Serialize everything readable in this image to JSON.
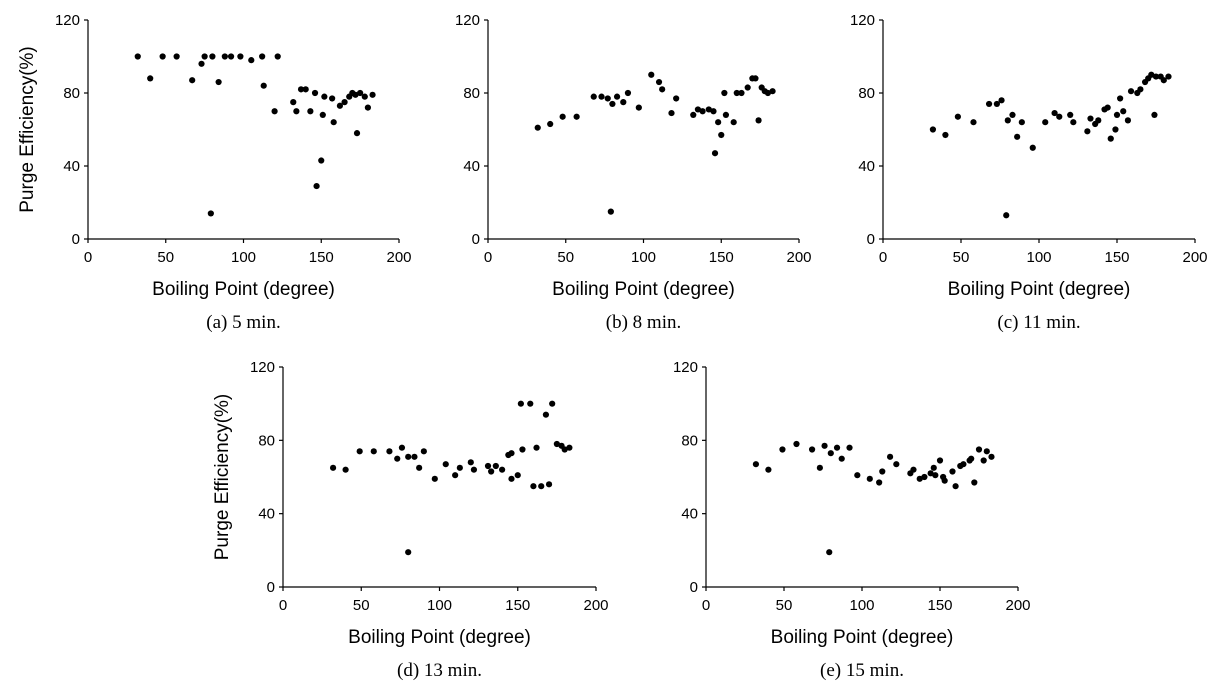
{
  "chart_data": [
    {
      "type": "scatter",
      "caption": "(a) 5 min.",
      "xlabel": "Boiling Point (degree)",
      "ylabel": "Purge Efficiency(%)",
      "xlim": [
        0,
        200
      ],
      "ylim": [
        0,
        120
      ],
      "xticks": [
        "0",
        "50",
        "100",
        "150",
        "200"
      ],
      "yticks": [
        "0",
        "40",
        "80",
        "120"
      ],
      "grid": false,
      "points": [
        [
          32,
          100
        ],
        [
          40,
          88
        ],
        [
          48,
          100
        ],
        [
          57,
          100
        ],
        [
          67,
          87
        ],
        [
          73,
          96
        ],
        [
          75,
          100
        ],
        [
          80,
          100
        ],
        [
          84,
          86
        ],
        [
          88,
          100
        ],
        [
          92,
          100
        ],
        [
          98,
          100
        ],
        [
          105,
          98
        ],
        [
          112,
          100
        ],
        [
          113,
          84
        ],
        [
          120,
          70
        ],
        [
          122,
          100
        ],
        [
          132,
          75
        ],
        [
          134,
          70
        ],
        [
          137,
          82
        ],
        [
          140,
          82
        ],
        [
          143,
          70
        ],
        [
          146,
          80
        ],
        [
          147,
          29
        ],
        [
          150,
          43
        ],
        [
          151,
          68
        ],
        [
          152,
          78
        ],
        [
          157,
          77
        ],
        [
          158,
          64
        ],
        [
          162,
          73
        ],
        [
          165,
          75
        ],
        [
          168,
          78
        ],
        [
          170,
          80
        ],
        [
          172,
          79
        ],
        [
          173,
          58
        ],
        [
          175,
          80
        ],
        [
          178,
          78
        ],
        [
          180,
          72
        ],
        [
          183,
          79
        ],
        [
          79,
          14
        ]
      ]
    },
    {
      "type": "scatter",
      "caption": "(b) 8 min.",
      "xlabel": "Boiling Point (degree)",
      "ylabel": "",
      "xlim": [
        0,
        200
      ],
      "ylim": [
        0,
        120
      ],
      "xticks": [
        "0",
        "50",
        "100",
        "150",
        "200"
      ],
      "yticks": [
        "0",
        "40",
        "80",
        "120"
      ],
      "grid": false,
      "points": [
        [
          32,
          61
        ],
        [
          40,
          63
        ],
        [
          48,
          67
        ],
        [
          57,
          67
        ],
        [
          68,
          78
        ],
        [
          73,
          78
        ],
        [
          77,
          77
        ],
        [
          80,
          74
        ],
        [
          83,
          78
        ],
        [
          87,
          75
        ],
        [
          90,
          80
        ],
        [
          97,
          72
        ],
        [
          105,
          90
        ],
        [
          110,
          86
        ],
        [
          112,
          82
        ],
        [
          118,
          69
        ],
        [
          121,
          77
        ],
        [
          132,
          68
        ],
        [
          135,
          71
        ],
        [
          138,
          70
        ],
        [
          142,
          71
        ],
        [
          145,
          70
        ],
        [
          146,
          47
        ],
        [
          148,
          64
        ],
        [
          150,
          57
        ],
        [
          152,
          80
        ],
        [
          153,
          68
        ],
        [
          158,
          64
        ],
        [
          160,
          80
        ],
        [
          163,
          80
        ],
        [
          167,
          83
        ],
        [
          170,
          88
        ],
        [
          172,
          88
        ],
        [
          174,
          65
        ],
        [
          176,
          83
        ],
        [
          178,
          81
        ],
        [
          180,
          80
        ],
        [
          183,
          81
        ],
        [
          79,
          15
        ]
      ]
    },
    {
      "type": "scatter",
      "caption": "(c) 11 min.",
      "xlabel": "Boiling Point (degree)",
      "ylabel": "",
      "xlim": [
        0,
        200
      ],
      "ylim": [
        0,
        120
      ],
      "xticks": [
        "0",
        "50",
        "100",
        "150",
        "200"
      ],
      "yticks": [
        "0",
        "40",
        "80",
        "120"
      ],
      "grid": false,
      "points": [
        [
          32,
          60
        ],
        [
          40,
          57
        ],
        [
          48,
          67
        ],
        [
          58,
          64
        ],
        [
          68,
          74
        ],
        [
          73,
          74
        ],
        [
          76,
          76
        ],
        [
          80,
          65
        ],
        [
          83,
          68
        ],
        [
          86,
          56
        ],
        [
          89,
          64
        ],
        [
          96,
          50
        ],
        [
          104,
          64
        ],
        [
          110,
          69
        ],
        [
          113,
          67
        ],
        [
          120,
          68
        ],
        [
          122,
          64
        ],
        [
          131,
          59
        ],
        [
          133,
          66
        ],
        [
          136,
          63
        ],
        [
          138,
          65
        ],
        [
          142,
          71
        ],
        [
          144,
          72
        ],
        [
          146,
          55
        ],
        [
          149,
          60
        ],
        [
          150,
          68
        ],
        [
          152,
          77
        ],
        [
          154,
          70
        ],
        [
          157,
          65
        ],
        [
          159,
          81
        ],
        [
          163,
          80
        ],
        [
          165,
          82
        ],
        [
          168,
          86
        ],
        [
          170,
          88
        ],
        [
          172,
          90
        ],
        [
          174,
          68
        ],
        [
          175,
          89
        ],
        [
          178,
          89
        ],
        [
          180,
          87
        ],
        [
          183,
          89
        ],
        [
          79,
          13
        ]
      ]
    },
    {
      "type": "scatter",
      "caption": "(d) 13 min.",
      "xlabel": "Boiling Point (degree)",
      "ylabel": "Purge Efficiency(%)",
      "xlim": [
        0,
        200
      ],
      "ylim": [
        0,
        120
      ],
      "xticks": [
        "0",
        "50",
        "100",
        "150",
        "200"
      ],
      "yticks": [
        "0",
        "40",
        "80",
        "120"
      ],
      "grid": false,
      "points": [
        [
          32,
          65
        ],
        [
          40,
          64
        ],
        [
          49,
          74
        ],
        [
          58,
          74
        ],
        [
          68,
          74
        ],
        [
          73,
          70
        ],
        [
          76,
          76
        ],
        [
          80,
          71
        ],
        [
          84,
          71
        ],
        [
          87,
          65
        ],
        [
          90,
          74
        ],
        [
          97,
          59
        ],
        [
          104,
          67
        ],
        [
          110,
          61
        ],
        [
          113,
          65
        ],
        [
          120,
          68
        ],
        [
          122,
          64
        ],
        [
          131,
          66
        ],
        [
          133,
          63
        ],
        [
          136,
          66
        ],
        [
          140,
          64
        ],
        [
          144,
          72
        ],
        [
          146,
          73
        ],
        [
          146,
          59
        ],
        [
          150,
          61
        ],
        [
          152,
          100
        ],
        [
          153,
          75
        ],
        [
          158,
          100
        ],
        [
          160,
          55
        ],
        [
          162,
          76
        ],
        [
          165,
          55
        ],
        [
          168,
          94
        ],
        [
          170,
          56
        ],
        [
          172,
          100
        ],
        [
          175,
          78
        ],
        [
          178,
          77
        ],
        [
          180,
          75
        ],
        [
          183,
          76
        ],
        [
          80,
          19
        ]
      ]
    },
    {
      "type": "scatter",
      "caption": "(e) 15 min.",
      "xlabel": "Boiling Point (degree)",
      "ylabel": "",
      "xlim": [
        0,
        200
      ],
      "ylim": [
        0,
        120
      ],
      "xticks": [
        "0",
        "50",
        "100",
        "150",
        "200"
      ],
      "yticks": [
        "0",
        "40",
        "80",
        "120"
      ],
      "grid": false,
      "points": [
        [
          32,
          67
        ],
        [
          40,
          64
        ],
        [
          49,
          75
        ],
        [
          58,
          78
        ],
        [
          68,
          75
        ],
        [
          73,
          65
        ],
        [
          76,
          77
        ],
        [
          80,
          73
        ],
        [
          84,
          76
        ],
        [
          87,
          70
        ],
        [
          92,
          76
        ],
        [
          97,
          61
        ],
        [
          105,
          59
        ],
        [
          111,
          57
        ],
        [
          113,
          63
        ],
        [
          118,
          71
        ],
        [
          122,
          67
        ],
        [
          131,
          62
        ],
        [
          133,
          64
        ],
        [
          137,
          59
        ],
        [
          140,
          60
        ],
        [
          144,
          62
        ],
        [
          146,
          65
        ],
        [
          147,
          61
        ],
        [
          150,
          69
        ],
        [
          152,
          60
        ],
        [
          153,
          58
        ],
        [
          158,
          63
        ],
        [
          160,
          55
        ],
        [
          163,
          66
        ],
        [
          165,
          67
        ],
        [
          169,
          69
        ],
        [
          170,
          70
        ],
        [
          172,
          57
        ],
        [
          175,
          75
        ],
        [
          178,
          69
        ],
        [
          180,
          74
        ],
        [
          183,
          71
        ],
        [
          79,
          19
        ]
      ]
    }
  ]
}
